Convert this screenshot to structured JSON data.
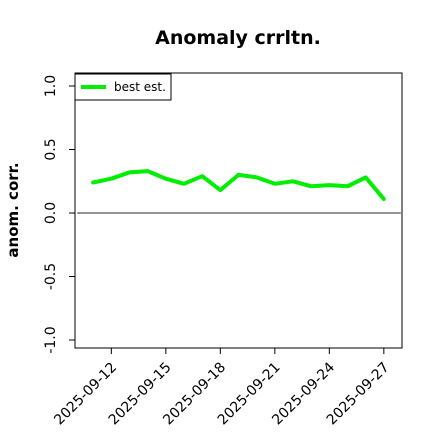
{
  "chart_data": {
    "type": "line",
    "title": "Anomaly crrltn.",
    "ylabel": "anom. corr.",
    "xlabel": "",
    "ylim": [
      -1.0,
      1.0
    ],
    "yticks": [
      -1.0,
      -0.5,
      0.0,
      0.5,
      1.0
    ],
    "ytick_labels": [
      "-1.0",
      "-0.5",
      "0.0",
      "0.5",
      "1.0"
    ],
    "x": [
      "2025-09-11",
      "2025-09-12",
      "2025-09-13",
      "2025-09-14",
      "2025-09-15",
      "2025-09-16",
      "2025-09-17",
      "2025-09-18",
      "2025-09-19",
      "2025-09-20",
      "2025-09-21",
      "2025-09-22",
      "2025-09-23",
      "2025-09-24",
      "2025-09-25",
      "2025-09-26",
      "2025-09-27"
    ],
    "xticks": [
      "2025-09-12",
      "2025-09-15",
      "2025-09-18",
      "2025-09-21",
      "2025-09-24",
      "2025-09-27"
    ],
    "xlim": [
      "2025-09-10",
      "2025-09-28"
    ],
    "series": [
      {
        "name": "best est.",
        "color": "#00ee00",
        "values": [
          0.24,
          0.27,
          0.32,
          0.33,
          0.27,
          0.23,
          0.29,
          0.18,
          0.3,
          0.28,
          0.23,
          0.25,
          0.21,
          0.22,
          0.21,
          0.28,
          0.11
        ]
      }
    ],
    "reference_line": {
      "y": 0.0,
      "color": "#555555"
    },
    "legend": {
      "position": "top-left"
    },
    "grid": false
  }
}
